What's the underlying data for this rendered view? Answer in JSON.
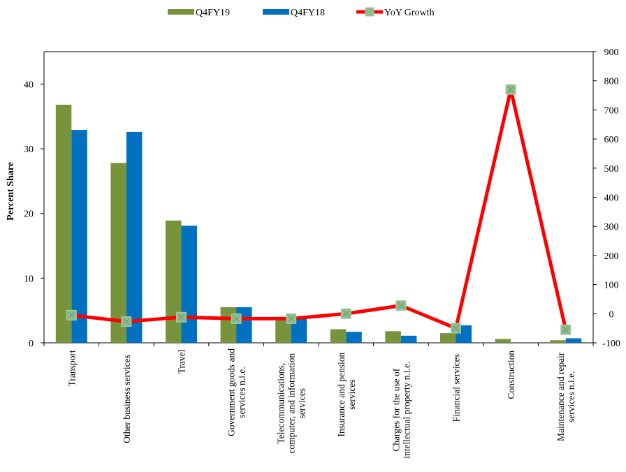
{
  "chart_data": {
    "type": "bar",
    "categories": [
      "Transport",
      "Other business services",
      "Travel",
      "Government goods and services n.i.e.",
      "Telecommunications, computer, and information services",
      "Insurance and pension services",
      "Charges for the use of intellectual property n.i.e.",
      "Financial services",
      "Construction",
      "Maintenance and repair services n.i.e."
    ],
    "category_label_lines": [
      [
        "Transport"
      ],
      [
        "Other business services"
      ],
      [
        "Travel"
      ],
      [
        "Government goods and",
        "services n.i.e."
      ],
      [
        "Telecommunications,",
        "computer, and information",
        "services"
      ],
      [
        "Insurance and pension",
        "services"
      ],
      [
        "Charges for the use of",
        "intellectual property n.i.e."
      ],
      [
        "Financial services"
      ],
      [
        "Construction"
      ],
      [
        "Maintenance and repair",
        "services n.i.e."
      ]
    ],
    "series": [
      {
        "name": "Q4FY19",
        "type": "bar",
        "axis": "left",
        "color": "#77933C",
        "values": [
          36.8,
          27.8,
          18.9,
          5.5,
          4.0,
          2.1,
          1.8,
          1.5,
          0.6,
          0.4
        ]
      },
      {
        "name": "Q4FY18",
        "type": "bar",
        "axis": "left",
        "color": "#0070C0",
        "values": [
          32.9,
          32.6,
          18.1,
          5.5,
          4.0,
          1.7,
          1.1,
          2.7,
          0.0,
          0.7
        ]
      },
      {
        "name": "YoY Growth",
        "type": "line",
        "axis": "right",
        "color": "#FF0000",
        "marker_color": "#8FBC8F",
        "values": [
          -5,
          -27,
          -12,
          -17,
          -17,
          0,
          28,
          -50,
          770,
          -55
        ]
      }
    ],
    "ylabel": "Percent Share",
    "ylim": [
      0,
      45
    ],
    "yticks": [
      0,
      10,
      20,
      30,
      40
    ],
    "y2lim": [
      -100,
      900
    ],
    "y2ticks": [
      -100,
      0,
      100,
      200,
      300,
      400,
      500,
      600,
      700,
      800,
      900
    ],
    "grid": false,
    "legend_position": "top-center"
  }
}
